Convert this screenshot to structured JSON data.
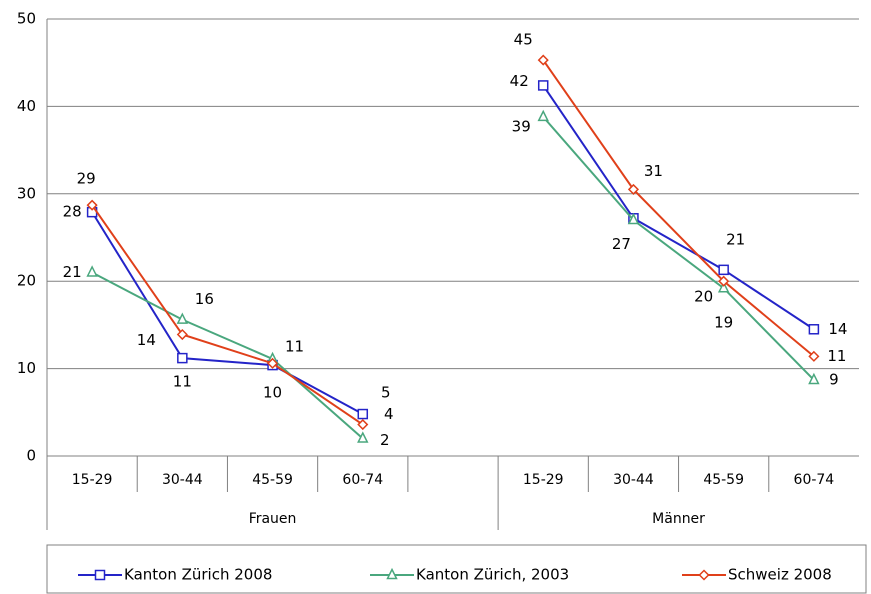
{
  "chart_data": {
    "type": "line",
    "categories": [
      "15-29",
      "30-44",
      "45-59",
      "60-74",
      null,
      "15-29",
      "30-44",
      "45-59",
      "60-74"
    ],
    "group_labels": [
      "Frauen",
      "Männer"
    ],
    "ylim": [
      0,
      50
    ],
    "yticks": [
      0,
      10,
      20,
      30,
      40,
      50
    ],
    "grid": true,
    "series": [
      {
        "name": "Kanton Zürich 2008",
        "color": "#2424c8",
        "marker": "square",
        "values": [
          27.9,
          11.2,
          10.4,
          4.8,
          null,
          42.4,
          27.2,
          21.3,
          14.5
        ],
        "value_labels": [
          "28",
          "11",
          "10",
          "5",
          null,
          "42",
          "27",
          "21",
          "14"
        ]
      },
      {
        "name": "Kanton Zürich, 2003",
        "color": "#4aa77e",
        "marker": "triangle",
        "values": [
          21.0,
          15.6,
          11.1,
          2.0,
          null,
          38.8,
          27.0,
          19.2,
          8.7
        ],
        "value_labels": [
          "21",
          "16",
          "11",
          "2",
          null,
          "39",
          null,
          "19",
          "9"
        ]
      },
      {
        "name": "Schweiz 2008",
        "color": "#e0401a",
        "marker": "diamond",
        "values": [
          28.7,
          13.9,
          10.6,
          3.6,
          null,
          45.3,
          30.5,
          20.0,
          11.4
        ],
        "value_labels": [
          "29",
          "14",
          null,
          "4",
          null,
          "45",
          "31",
          "20",
          "11"
        ]
      }
    ]
  }
}
